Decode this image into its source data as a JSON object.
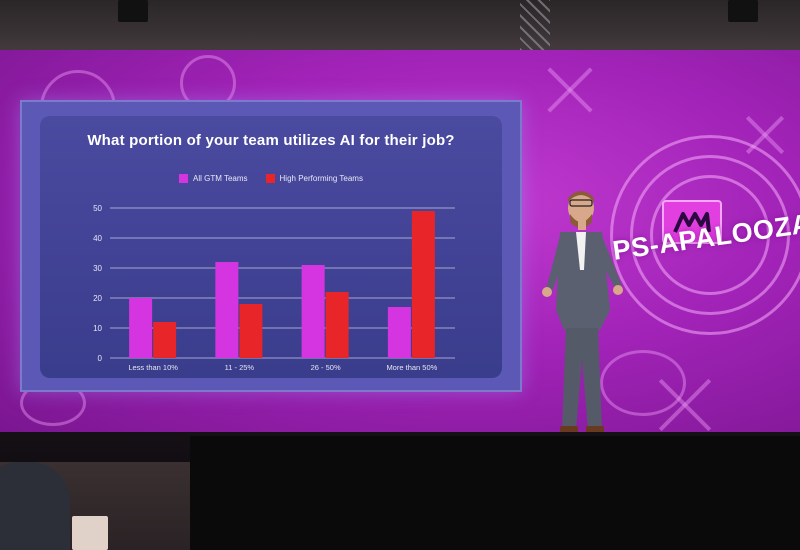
{
  "scene": {
    "backdrop_color": "#a223b8",
    "brand_text": "PS-APALOOZA"
  },
  "slide": {
    "title": "What portion of your team utilizes AI for their job?"
  },
  "chart_data": {
    "type": "bar",
    "title": "What portion of your team utilizes AI for their job?",
    "categories": [
      "Less than 10%",
      "11 - 25%",
      "26 - 50%",
      "More than 50%"
    ],
    "series": [
      {
        "name": "All GTM Teams",
        "color": "#d535e0",
        "values": [
          20,
          32,
          31,
          17
        ]
      },
      {
        "name": "High Performing Teams",
        "color": "#e8262a",
        "values": [
          12,
          18,
          22,
          49
        ]
      }
    ],
    "yticks": [
      0,
      10,
      20,
      30,
      40,
      50
    ],
    "ylim": [
      0,
      50
    ],
    "grid": true,
    "legend_position": "top-center"
  }
}
